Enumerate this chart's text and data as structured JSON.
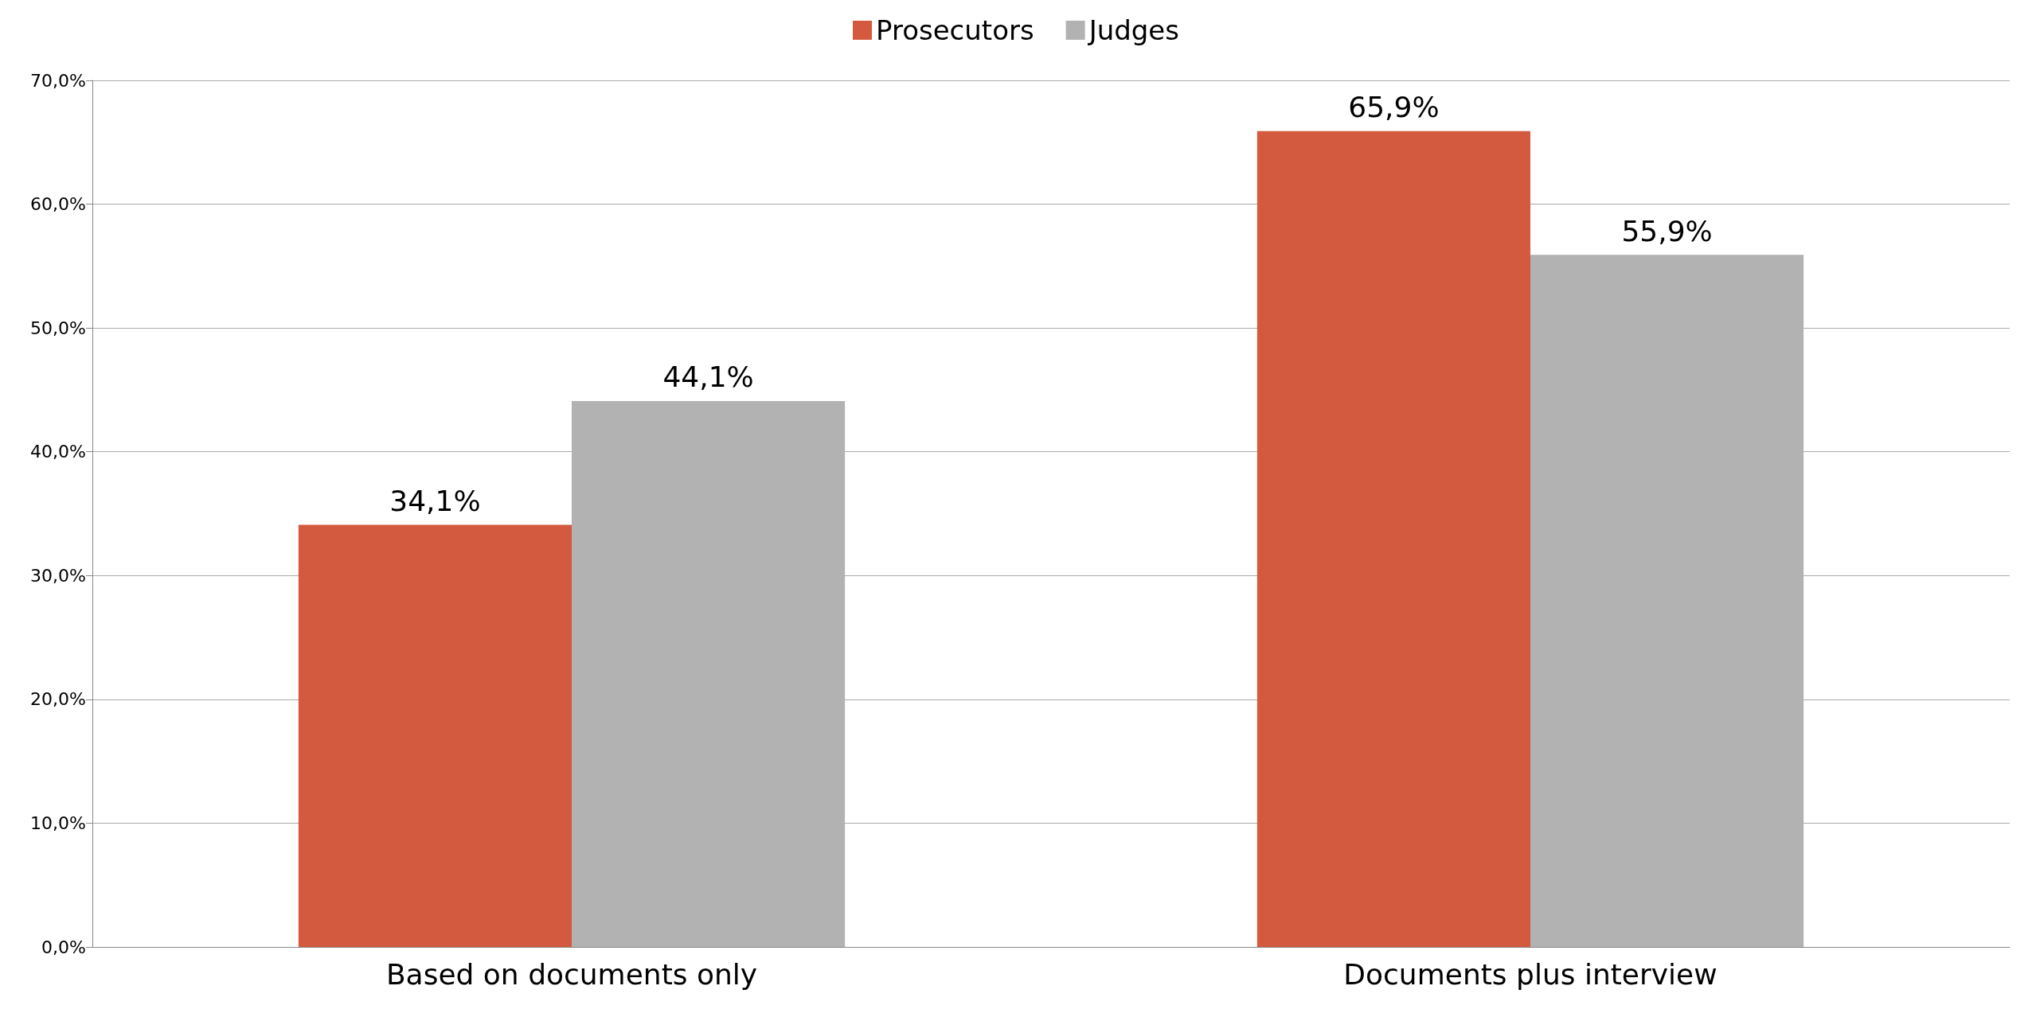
{
  "chart_data": {
    "type": "bar",
    "categories": [
      "Based on documents only",
      "Documents plus interview"
    ],
    "series": [
      {
        "name": "Prosecutors",
        "color": "#d35a3e",
        "values": [
          34.1,
          65.9
        ],
        "value_labels": [
          "34,1%",
          "65,9%"
        ]
      },
      {
        "name": "Judges",
        "color": "#b2b2b2",
        "values": [
          44.1,
          55.9
        ],
        "value_labels": [
          "44,1%",
          "55,9%"
        ]
      }
    ],
    "ylim": [
      0,
      70
    ],
    "yticks": [
      {
        "value": 0,
        "label": "0,0%"
      },
      {
        "value": 10,
        "label": "10,0%"
      },
      {
        "value": 20,
        "label": "20,0%"
      },
      {
        "value": 30,
        "label": "30,0%"
      },
      {
        "value": 40,
        "label": "40,0%"
      },
      {
        "value": 50,
        "label": "50,0%"
      },
      {
        "value": 60,
        "label": "60,0%"
      },
      {
        "value": 70,
        "label": "70,0%"
      }
    ],
    "grid": "y",
    "legend": "top"
  }
}
